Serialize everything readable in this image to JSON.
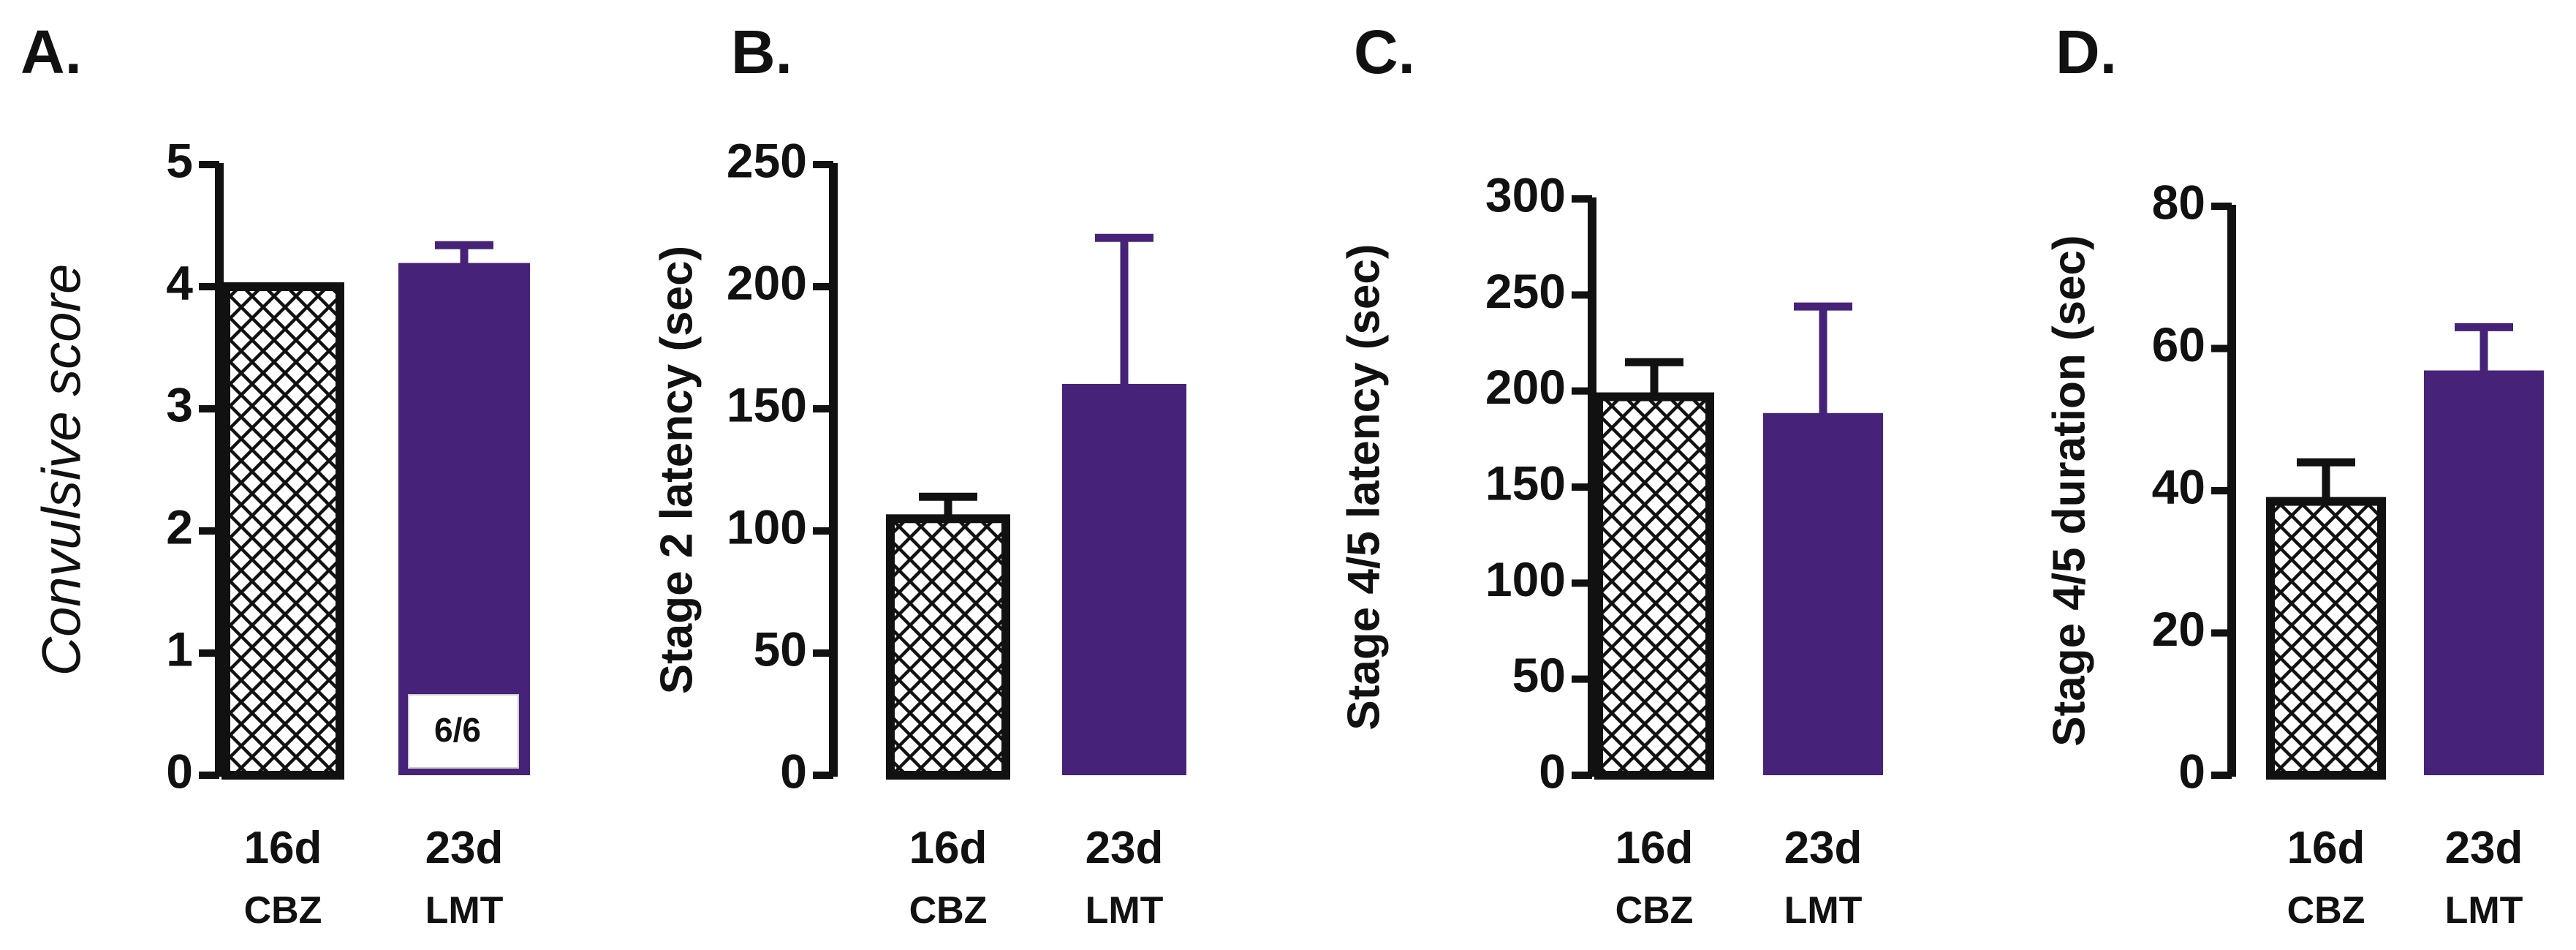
{
  "colors": {
    "axis": "#111111",
    "lmt_fill": "#462378",
    "cbz_fill": "#ffffff",
    "hatch": "#111111"
  },
  "chart_data": [
    {
      "panel": "A.",
      "type": "bar",
      "ylabel": "Convulsive score",
      "ylim": [
        0,
        5
      ],
      "yticks": [
        0,
        1,
        2,
        3,
        4,
        5
      ],
      "categories": [
        {
          "line1": "16d",
          "line2": "CBZ"
        },
        {
          "line1": "23d",
          "line2": "LMT"
        }
      ],
      "values": [
        4.0,
        4.17
      ],
      "errors": [
        0,
        0.17
      ],
      "bar_annotation": {
        "bar_index": 1,
        "text": "6/6"
      }
    },
    {
      "panel": "B.",
      "type": "bar",
      "ylabel": "Stage 2 latency (sec)",
      "ylim": [
        0,
        250
      ],
      "yticks": [
        0,
        50,
        100,
        150,
        200,
        250
      ],
      "categories": [
        {
          "line1": "16d",
          "line2": "CBZ"
        },
        {
          "line1": "23d",
          "line2": "LMT"
        }
      ],
      "values": [
        105,
        159
      ],
      "errors": [
        9,
        61
      ]
    },
    {
      "panel": "C.",
      "type": "bar",
      "ylabel": "Stage 4/5 latency (sec)",
      "ylim": [
        0,
        300
      ],
      "yticks": [
        0,
        50,
        100,
        150,
        200,
        250,
        300
      ],
      "categories": [
        {
          "line1": "16d",
          "line2": "CBZ"
        },
        {
          "line1": "23d",
          "line2": "LMT"
        }
      ],
      "values": [
        197,
        187
      ],
      "errors": [
        18,
        57
      ]
    },
    {
      "panel": "D.",
      "type": "bar",
      "ylabel": "Stage 4/5 duration (sec)",
      "ylim": [
        0,
        80
      ],
      "yticks": [
        0,
        20,
        40,
        60,
        80
      ],
      "categories": [
        {
          "line1": "16d",
          "line2": "CBZ"
        },
        {
          "line1": "23d",
          "line2": "LMT"
        }
      ],
      "values": [
        38.5,
        56.5
      ],
      "errors": [
        5.5,
        6.5
      ]
    }
  ]
}
